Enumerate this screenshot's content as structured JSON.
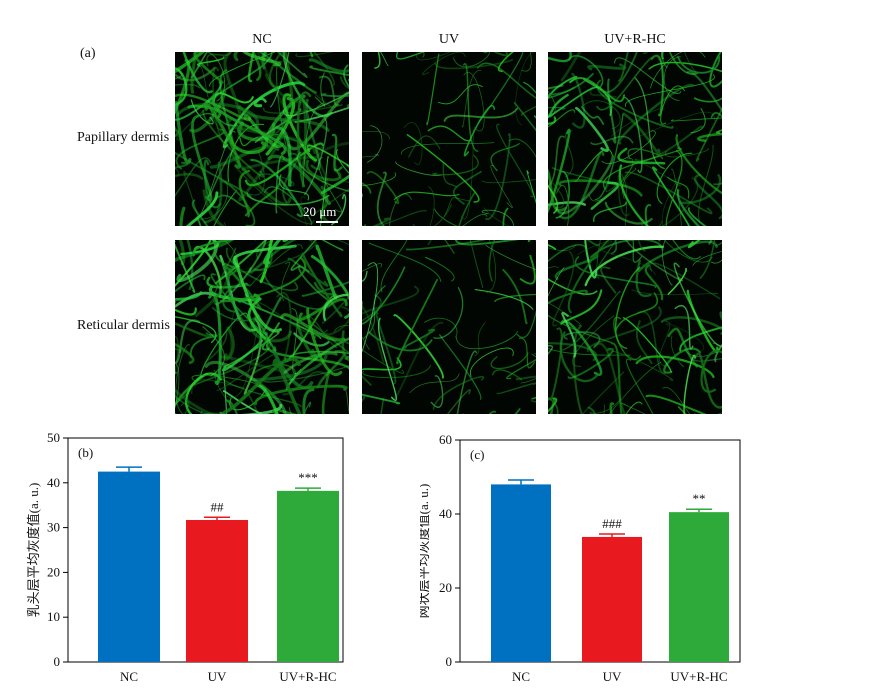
{
  "figure": {
    "panel_a_label": "(a)",
    "columns": [
      "NC",
      "UV",
      "UV+R-HC"
    ],
    "rows": [
      "Papillary dermis",
      "Reticular dermis"
    ],
    "scale_bar": "20 μm"
  },
  "colors": {
    "NC": "#0070C0",
    "UV": "#E8191F",
    "UV+R-HC": "#2DAA3A",
    "fluorescence": "#3FD14A"
  },
  "chart_data": [
    {
      "type": "bar",
      "panel_label": "(b)",
      "categories": [
        "NC",
        "UV",
        "UV+R-HC"
      ],
      "values": [
        42.5,
        31.7,
        38.2
      ],
      "errors": [
        1.0,
        0.6,
        0.6
      ],
      "annotations": [
        "",
        "##",
        "***"
      ],
      "ylabel": "乳头层平均灰度值(a. u.)",
      "ylim": [
        0,
        50
      ],
      "yticks": [
        0,
        10,
        20,
        30,
        40,
        50
      ],
      "grid": false
    },
    {
      "type": "bar",
      "panel_label": "(c)",
      "categories": [
        "NC",
        "UV",
        "UV+R-HC"
      ],
      "values": [
        48.0,
        33.8,
        40.5
      ],
      "errors": [
        1.2,
        0.8,
        0.8
      ],
      "annotations": [
        "",
        "###",
        "**"
      ],
      "ylabel": "网状层平均灰度值(a. u.)",
      "ylim": [
        0,
        60
      ],
      "yticks": [
        0,
        20,
        40,
        60
      ],
      "grid": false
    }
  ]
}
